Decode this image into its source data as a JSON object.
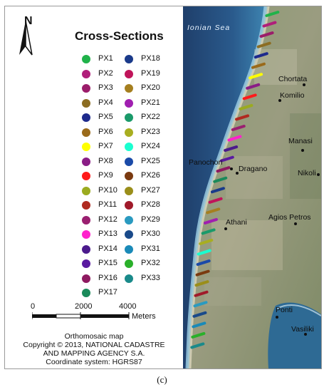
{
  "legend": {
    "title": "Cross-Sections",
    "north": "N",
    "items": [
      {
        "label": "PX1",
        "color": "#20b24a"
      },
      {
        "label": "PX2",
        "color": "#b01e7a"
      },
      {
        "label": "PX3",
        "color": "#9b1d6a"
      },
      {
        "label": "PX4",
        "color": "#8c6d22"
      },
      {
        "label": "PX5",
        "color": "#1e2a8c"
      },
      {
        "label": "PX6",
        "color": "#9a6a1a"
      },
      {
        "label": "PX7",
        "color": "#ffff00"
      },
      {
        "label": "PX8",
        "color": "#8a1d86"
      },
      {
        "label": "PX9",
        "color": "#ff1a1a"
      },
      {
        "label": "PX10",
        "color": "#9bab20"
      },
      {
        "label": "PX11",
        "color": "#b02a20"
      },
      {
        "label": "PX12",
        "color": "#9a1f70"
      },
      {
        "label": "PX13",
        "color": "#ff22cc"
      },
      {
        "label": "PX14",
        "color": "#4b1a8c"
      },
      {
        "label": "PX15",
        "color": "#5a1aa0"
      },
      {
        "label": "PX16",
        "color": "#8e1a60"
      },
      {
        "label": "PX17",
        "color": "#1a8a5a"
      },
      {
        "label": "PX18",
        "color": "#1a3a8a"
      },
      {
        "label": "PX19",
        "color": "#c0145a"
      },
      {
        "label": "PX20",
        "color": "#a57f1f"
      },
      {
        "label": "PX21",
        "color": "#a01fb0"
      },
      {
        "label": "PX22",
        "color": "#1a9a6a"
      },
      {
        "label": "PX23",
        "color": "#a8ae20"
      },
      {
        "label": "PX24",
        "color": "#1affd0"
      },
      {
        "label": "PX25",
        "color": "#1a4aa8"
      },
      {
        "label": "PX26",
        "color": "#7a3a10"
      },
      {
        "label": "PX27",
        "color": "#9a8e1a"
      },
      {
        "label": "PX28",
        "color": "#a01a2a"
      },
      {
        "label": "PX29",
        "color": "#2a9ac0"
      },
      {
        "label": "PX30",
        "color": "#1a4a8a"
      },
      {
        "label": "PX31",
        "color": "#1a8ab8"
      },
      {
        "label": "PX32",
        "color": "#2ab02a"
      },
      {
        "label": "PX33",
        "color": "#1a8a8a"
      }
    ]
  },
  "scale": {
    "ticks": [
      "0",
      "2000",
      "4000"
    ],
    "units": "Meters"
  },
  "credits": {
    "line1": "Orthomosaic map",
    "line2": "Copyright © 2013, NATIONAL CADASTRE",
    "line3": "AND MAPPING AGENCY S.A.",
    "line4": "Coordinate system: HGRS87"
  },
  "map": {
    "sea_label": "Ionian Sea",
    "places": [
      "Chortata",
      "Komilio",
      "Manasi",
      "Panochori",
      "Dragano",
      "Nikoli",
      "Athani",
      "Agios Petros",
      "Ponti",
      "Vasiliki"
    ]
  },
  "caption": "(c)"
}
